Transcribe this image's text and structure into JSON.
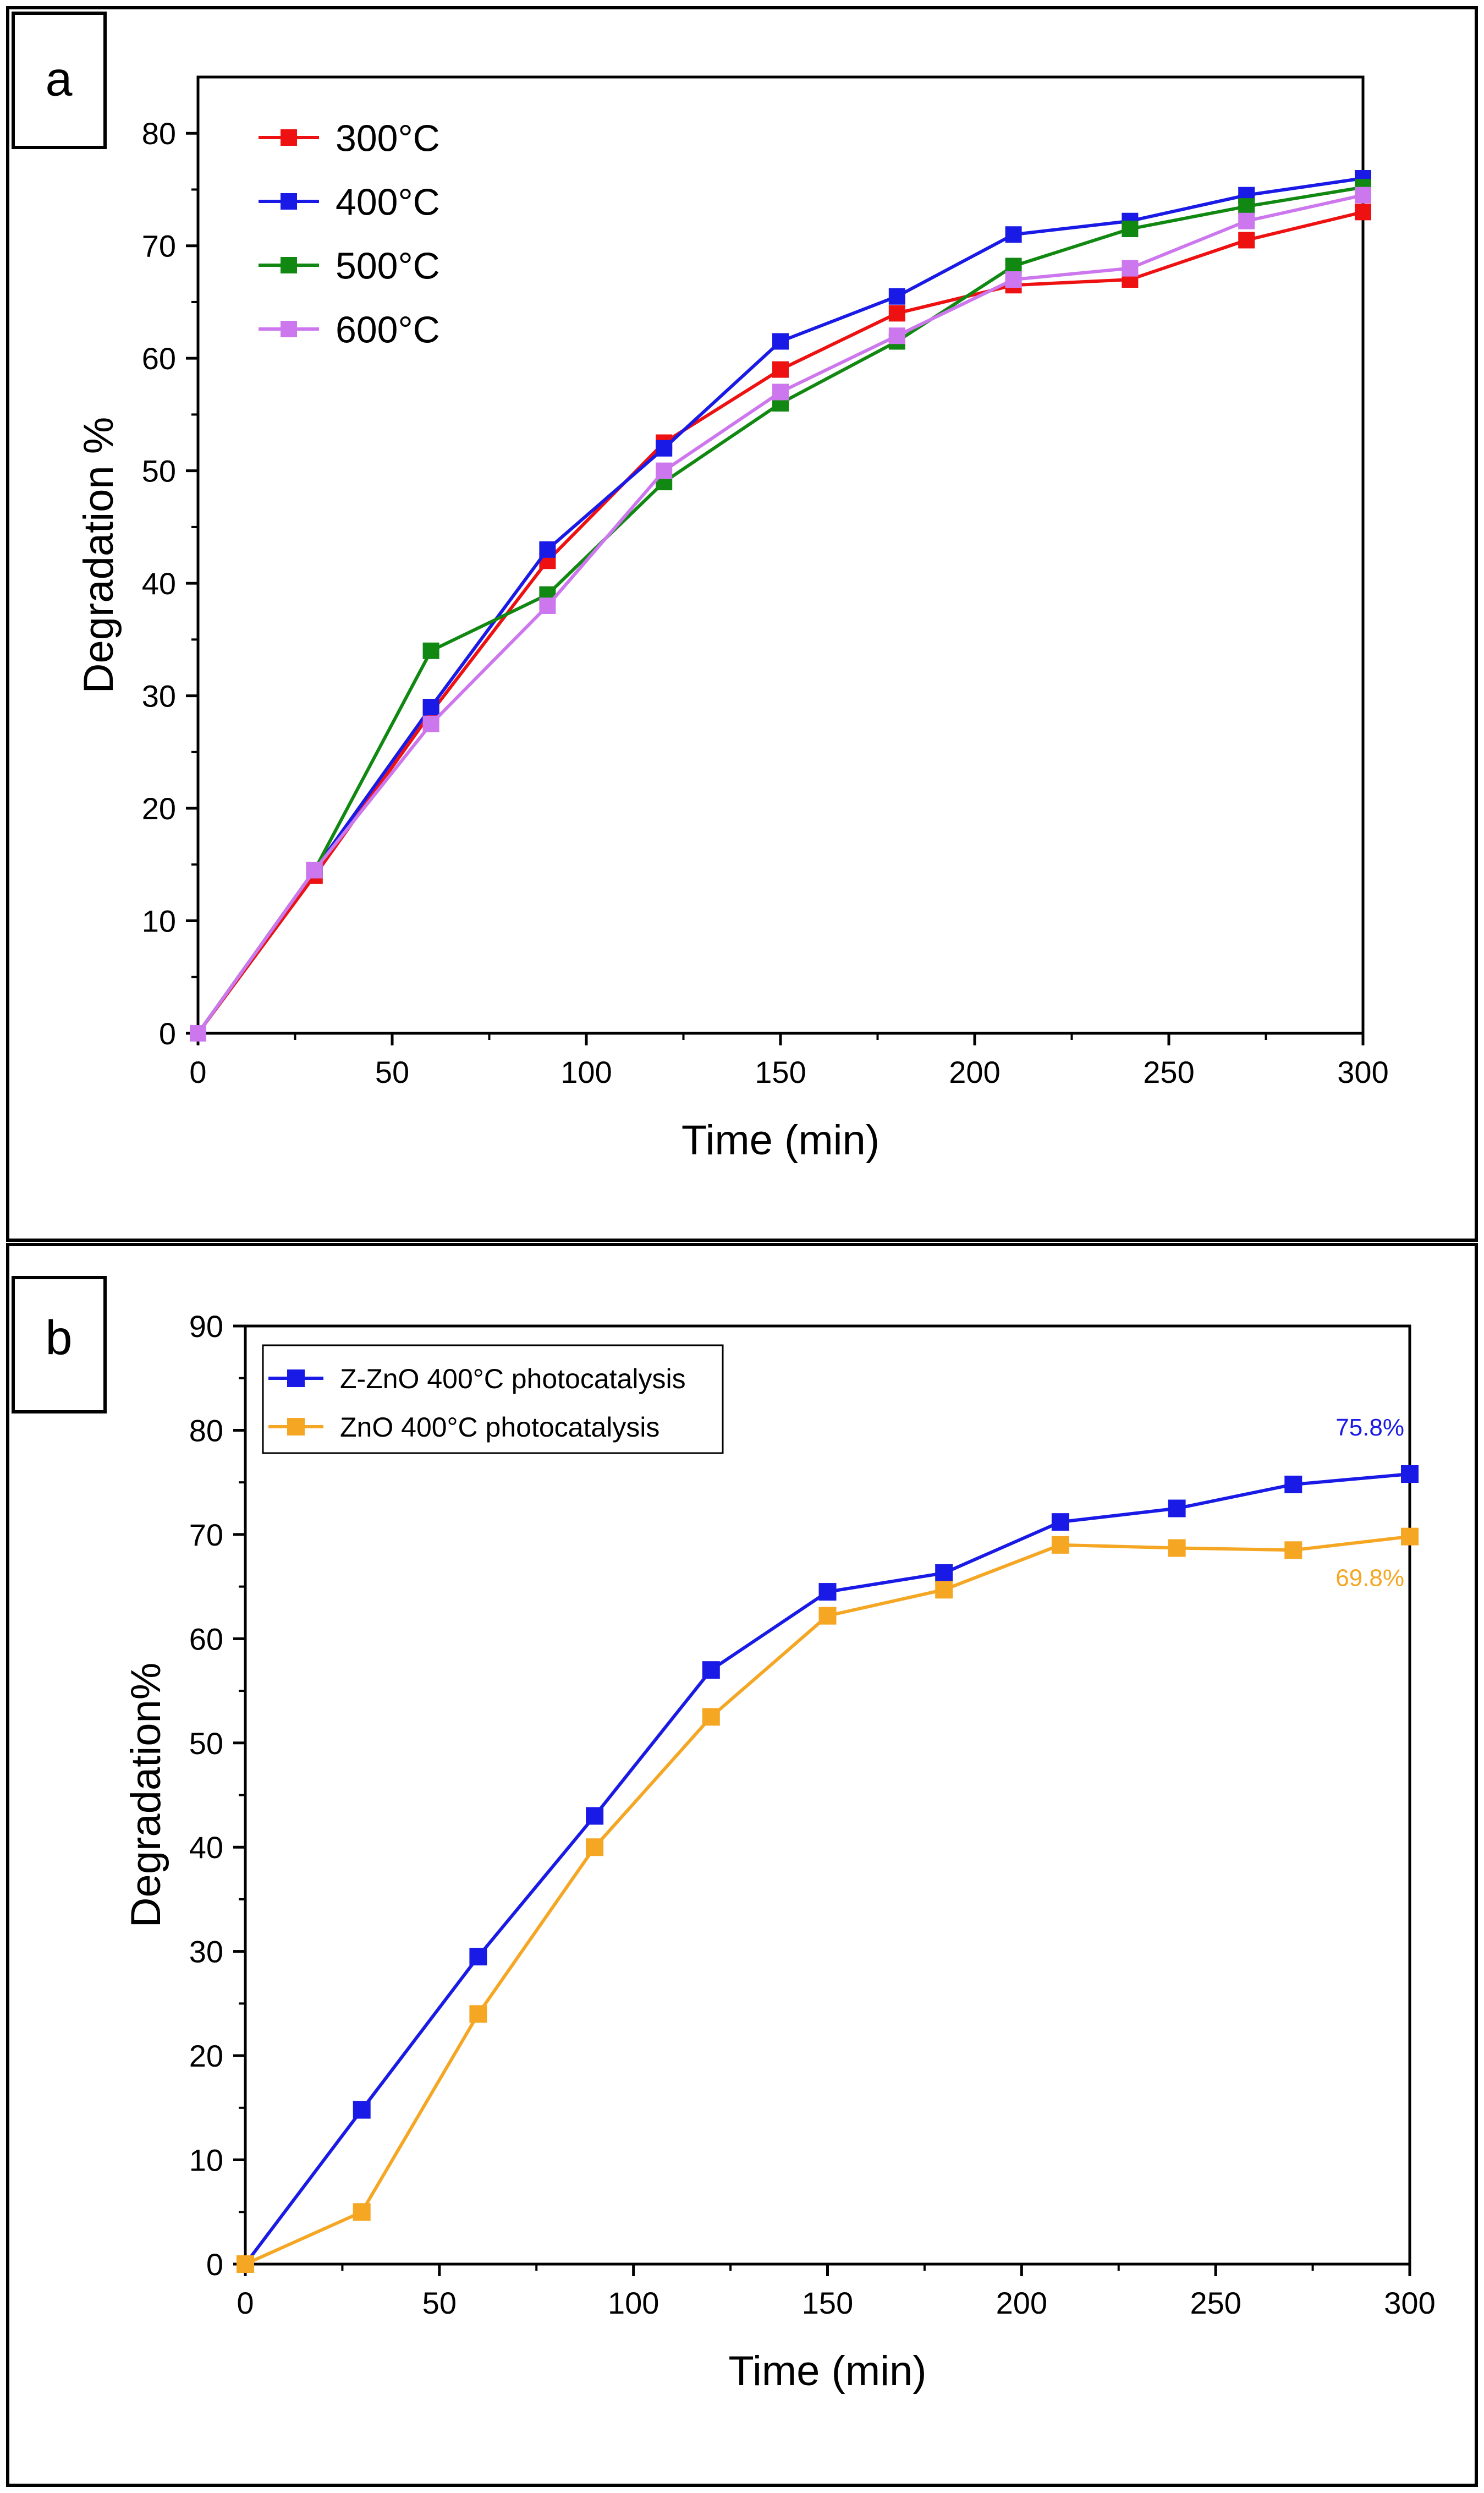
{
  "chart_data": [
    {
      "panel_label": "a",
      "type": "line",
      "title": "",
      "xlabel": "Time (min)",
      "ylabel": "Degradation %",
      "xlim": [
        0,
        300
      ],
      "ylim": [
        0,
        85
      ],
      "xticks": [
        0,
        50,
        100,
        150,
        200,
        250,
        300
      ],
      "yticks": [
        0,
        10,
        20,
        30,
        40,
        50,
        60,
        70,
        80
      ],
      "x": [
        0,
        30,
        60,
        90,
        120,
        150,
        180,
        210,
        240,
        270,
        300
      ],
      "grid": false,
      "legend_position": "top-left",
      "series": [
        {
          "name": "300°C",
          "color": "#ee1111",
          "values": [
            0,
            14,
            28.5,
            42,
            52.5,
            59,
            64,
            66.5,
            67,
            70.5,
            73
          ]
        },
        {
          "name": "400°C",
          "color": "#1a1ae6",
          "values": [
            0,
            14.5,
            29,
            43,
            52,
            61.5,
            65.5,
            71,
            72.2,
            74.5,
            76
          ]
        },
        {
          "name": "500°C",
          "color": "#118811",
          "values": [
            0,
            14.5,
            34,
            39,
            49,
            56,
            61.5,
            68.2,
            71.5,
            73.5,
            75.2
          ]
        },
        {
          "name": "600°C",
          "color": "#cc77ee",
          "values": [
            0,
            14.5,
            27.5,
            38,
            50,
            57,
            62,
            67,
            68,
            72.2,
            74.5
          ]
        }
      ]
    },
    {
      "panel_label": "b",
      "type": "line",
      "title": "",
      "xlabel": "Time (min)",
      "ylabel": "Degradation%",
      "xlim": [
        0,
        300
      ],
      "ylim": [
        0,
        90
      ],
      "xticks": [
        0,
        50,
        100,
        150,
        200,
        250,
        300
      ],
      "yticks": [
        0,
        10,
        20,
        30,
        40,
        50,
        60,
        70,
        80,
        90
      ],
      "x": [
        0,
        30,
        60,
        90,
        120,
        150,
        180,
        210,
        240,
        270,
        300
      ],
      "grid": false,
      "legend_position": "top-left",
      "series": [
        {
          "name": "Z-ZnO 400°C photocatalysis",
          "color": "#1a1ae6",
          "values": [
            0,
            14.8,
            29.5,
            43,
            57,
            64.5,
            66.3,
            71.2,
            72.5,
            74.8,
            75.8
          ]
        },
        {
          "name": "ZnO 400°C photocatalysis",
          "color": "#f5a623",
          "values": [
            0,
            5,
            24,
            40,
            52.5,
            62.2,
            64.7,
            69,
            68.7,
            68.5,
            69.8
          ]
        }
      ],
      "annotations": [
        {
          "text": "75.8%",
          "x": 300,
          "y": 75.8,
          "color": "#1a1ae6",
          "placement": "above"
        },
        {
          "text": "69.8%",
          "x": 300,
          "y": 69.8,
          "color": "#f5a623",
          "placement": "below"
        }
      ]
    }
  ]
}
